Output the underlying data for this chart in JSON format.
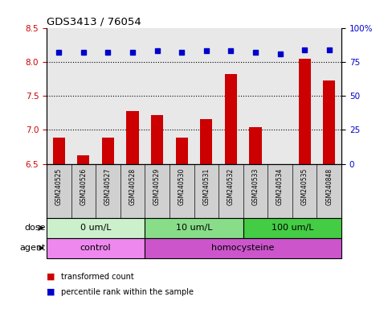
{
  "title": "GDS3413 / 76054",
  "samples": [
    "GSM240525",
    "GSM240526",
    "GSM240527",
    "GSM240528",
    "GSM240529",
    "GSM240530",
    "GSM240531",
    "GSM240532",
    "GSM240533",
    "GSM240534",
    "GSM240535",
    "GSM240848"
  ],
  "transformed_count": [
    6.88,
    6.62,
    6.88,
    7.28,
    7.22,
    6.88,
    7.16,
    7.82,
    7.04,
    6.5,
    8.05,
    7.72
  ],
  "percentile_rank": [
    82,
    82,
    82,
    82,
    83,
    82,
    83,
    83,
    82,
    81,
    84,
    84
  ],
  "ylim_left": [
    6.5,
    8.5
  ],
  "ylim_right": [
    0,
    100
  ],
  "yticks_left": [
    6.5,
    7.0,
    7.5,
    8.0,
    8.5
  ],
  "yticks_right": [
    0,
    25,
    50,
    75,
    100
  ],
  "bar_color": "#cc0000",
  "dot_color": "#0000cc",
  "dose_groups": [
    {
      "label": "0 um/L",
      "start": 0,
      "end": 3,
      "color": "#ccf0cc"
    },
    {
      "label": "10 um/L",
      "start": 4,
      "end": 7,
      "color": "#88dd88"
    },
    {
      "label": "100 um/L",
      "start": 8,
      "end": 11,
      "color": "#44cc44"
    }
  ],
  "agent_groups": [
    {
      "label": "control",
      "start": 0,
      "end": 3,
      "color": "#ee88ee"
    },
    {
      "label": "homocysteine",
      "start": 4,
      "end": 11,
      "color": "#cc55cc"
    }
  ],
  "dose_label": "dose",
  "agent_label": "agent",
  "legend_bar_label": "transformed count",
  "legend_dot_label": "percentile rank within the sample",
  "plot_bg_color": "#e8e8e8",
  "sample_label_bg": "#d0d0d0"
}
